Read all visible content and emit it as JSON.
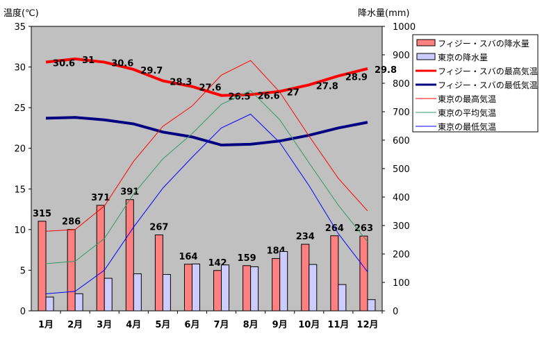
{
  "chart_data": {
    "type": "bar+line",
    "ylabel_left": "温度(℃)",
    "ylabel_right": "降水量(mm)",
    "ylim_left": [
      0,
      35
    ],
    "ylim_right": [
      0,
      1000
    ],
    "yticks_left": [
      "0",
      "5",
      "10",
      "15",
      "20",
      "25",
      "30",
      "35"
    ],
    "yticks_right": [
      "0",
      "100",
      "200",
      "300",
      "400",
      "500",
      "600",
      "700",
      "800",
      "900",
      "1000"
    ],
    "categories": [
      "1月",
      "2月",
      "3月",
      "4月",
      "5月",
      "6月",
      "7月",
      "8月",
      "9月",
      "10月",
      "11月",
      "12月"
    ],
    "legend_position": "right",
    "series": [
      {
        "name": "フィジー・スバの降水量",
        "kind": "bar",
        "axis": "right",
        "color": "#ff8080",
        "values": [
          315,
          286,
          371,
          391,
          267,
          164,
          142,
          159,
          184,
          234,
          264,
          263
        ],
        "labels": [
          "315",
          "286",
          "371",
          "391",
          "267",
          "164",
          "142",
          "159",
          "184",
          "234",
          "264",
          "263"
        ]
      },
      {
        "name": "東京の降水量",
        "kind": "bar",
        "axis": "right",
        "color": "#ccccff",
        "values": [
          48.6,
          60.2,
          114.5,
          130.3,
          128.0,
          164.9,
          161.5,
          155.1,
          208.5,
          163.1,
          92.5,
          39.6
        ]
      },
      {
        "name": "フィジー・スバの最高気温",
        "kind": "line",
        "axis": "left",
        "color": "#ff0000",
        "width": 4,
        "values": [
          30.6,
          31,
          30.6,
          29.7,
          28.3,
          27.6,
          26.5,
          26.6,
          27,
          27.8,
          28.9,
          29.8
        ],
        "labels": [
          "30.6",
          "31",
          "30.6",
          "29.7",
          "28.3",
          "27.6",
          "26.5",
          "26.6",
          "27",
          "27.8",
          "28.9",
          "29.8"
        ]
      },
      {
        "name": "フィジー・スバの最低気温",
        "kind": "line",
        "axis": "left",
        "color": "#000080",
        "width": 4,
        "values": [
          23.7,
          23.8,
          23.5,
          23.0,
          22.0,
          21.4,
          20.4,
          20.5,
          20.9,
          21.6,
          22.5,
          23.2
        ]
      },
      {
        "name": "東京の最高気温",
        "kind": "line",
        "axis": "left",
        "color": "#ff0000",
        "width": 1,
        "values": [
          9.8,
          10.0,
          12.9,
          18.4,
          22.7,
          25.2,
          29.0,
          30.8,
          26.9,
          21.5,
          16.3,
          12.3
        ]
      },
      {
        "name": "東京の平均気温",
        "kind": "line",
        "axis": "left",
        "color": "#339966",
        "width": 1,
        "values": [
          5.8,
          6.1,
          8.9,
          14.4,
          18.7,
          21.8,
          25.4,
          27.1,
          23.5,
          18.2,
          13.0,
          8.5
        ]
      },
      {
        "name": "東京の最低気温",
        "kind": "line",
        "axis": "left",
        "color": "#0000ff",
        "width": 1,
        "values": [
          2.1,
          2.4,
          5.0,
          10.3,
          15.1,
          18.9,
          22.5,
          24.2,
          20.7,
          15.4,
          9.5,
          4.8
        ]
      }
    ]
  }
}
